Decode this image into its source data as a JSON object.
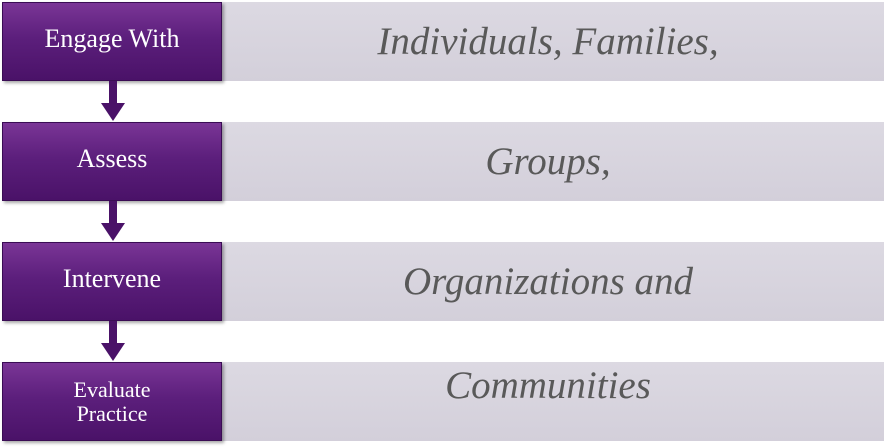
{
  "steps": [
    {
      "label": "Engage With"
    },
    {
      "label": "Assess"
    },
    {
      "label": "Intervene"
    },
    {
      "label": "Evaluate\nPractice"
    }
  ],
  "targets": [
    {
      "label": "Individuals, Families,"
    },
    {
      "label": "Groups,"
    },
    {
      "label": "Organizations and"
    },
    {
      "label": "Communities"
    }
  ],
  "colors": {
    "step_fill": "#5c1f7c",
    "target_fill": "#d6d3dd",
    "target_text": "#595959",
    "arrow": "#4a1268"
  }
}
